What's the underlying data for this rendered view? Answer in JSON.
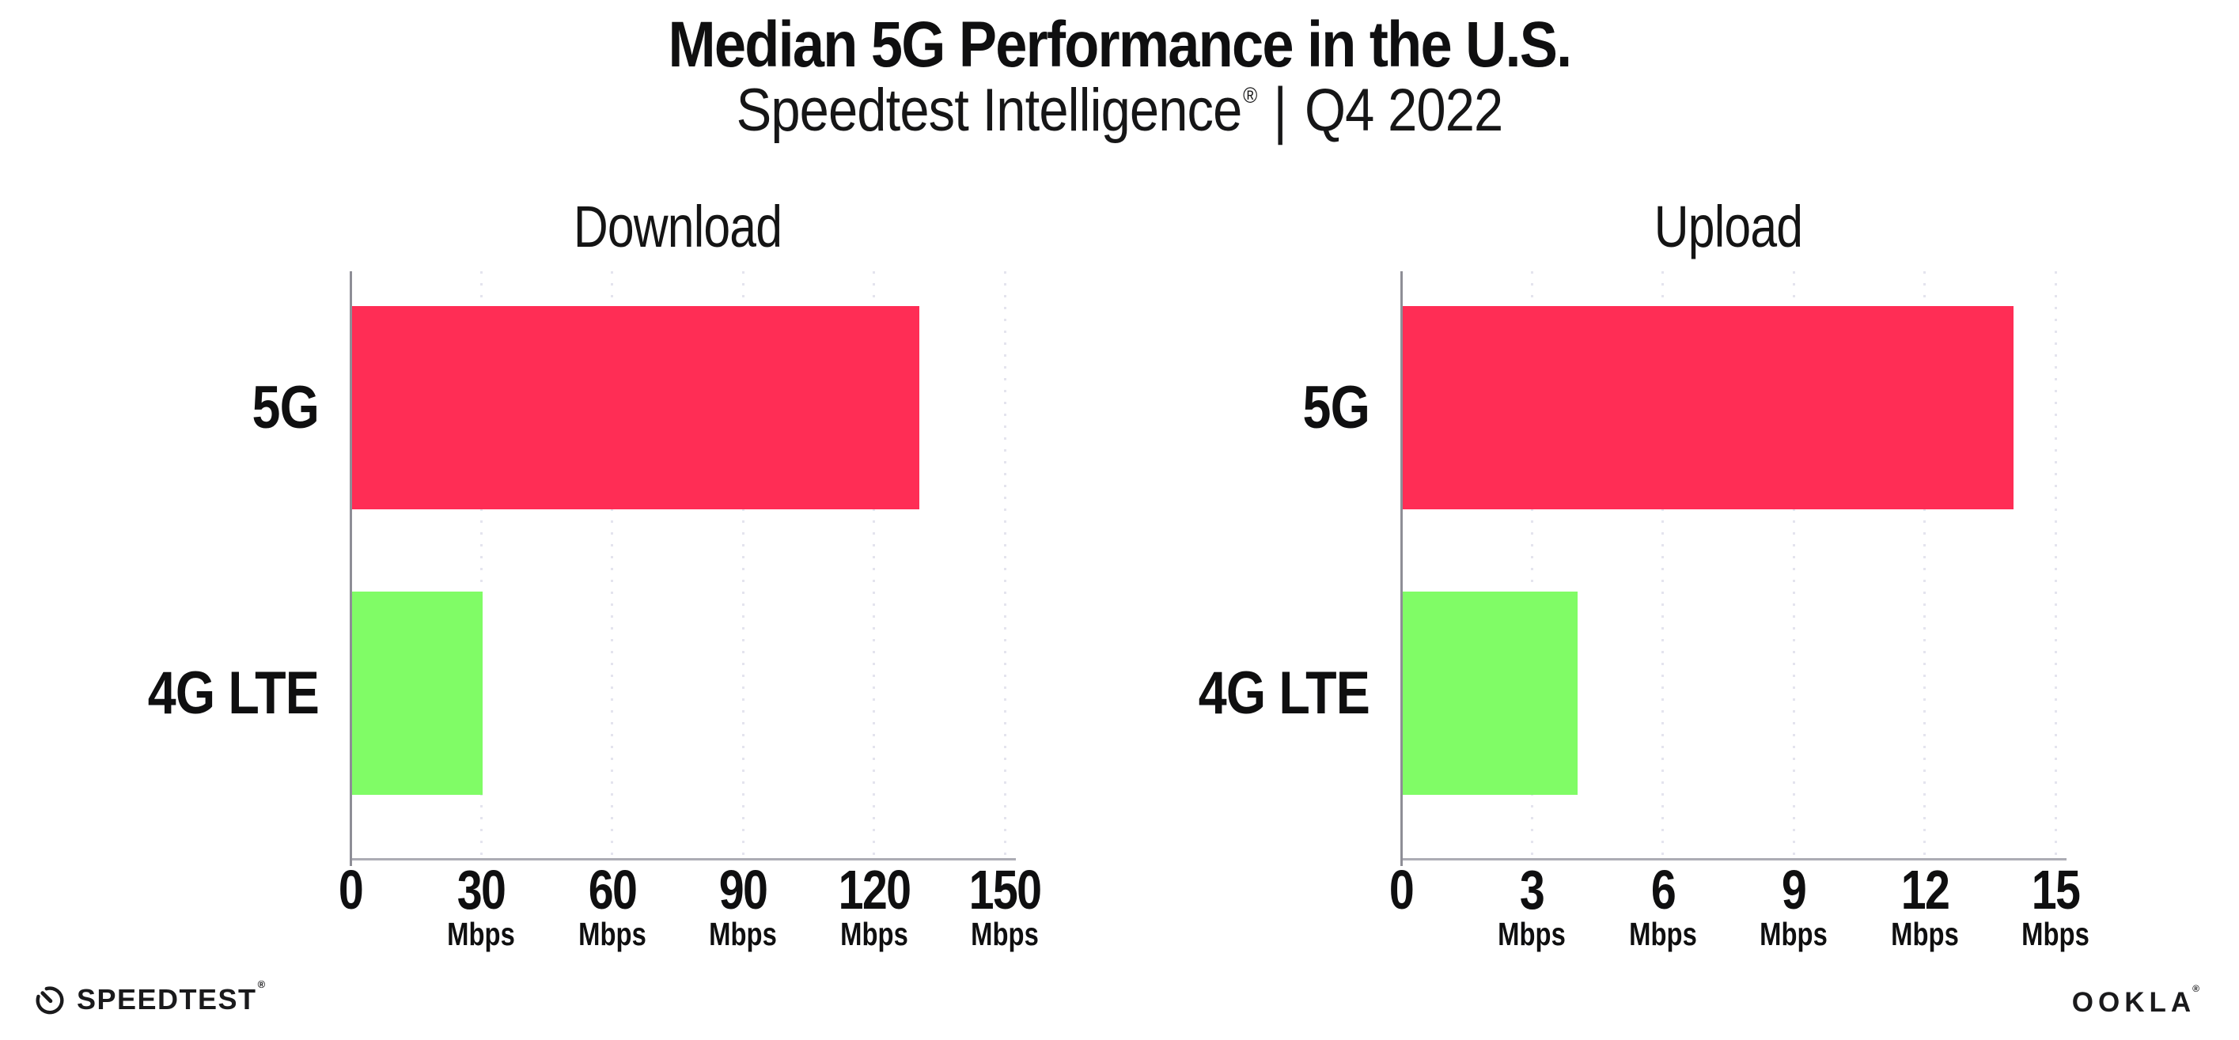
{
  "page": {
    "background": "#FFFFFF",
    "text_color": "#0F0F10"
  },
  "header": {
    "title": "Median 5G Performance in the U.S.",
    "subtitle": {
      "brand": "Speedtest Intelligence",
      "registered_mark": "®",
      "separator": "|",
      "period": "Q4 2022"
    }
  },
  "chart_data": [
    {
      "type": "bar",
      "orientation": "horizontal",
      "title": "Download",
      "categories": [
        "5G",
        "4G LTE"
      ],
      "values": [
        130,
        30
      ],
      "unit": "Mbps",
      "xlim": [
        0,
        150
      ],
      "xticks": [
        0,
        30,
        60,
        90,
        120,
        150
      ],
      "series_colors": [
        "#FF2D55",
        "#80FC66"
      ],
      "grid": "dotted-vertical",
      "legend": "none"
    },
    {
      "type": "bar",
      "orientation": "horizontal",
      "title": "Upload",
      "categories": [
        "5G",
        "4G LTE"
      ],
      "values": [
        14,
        4
      ],
      "unit": "Mbps",
      "xlim": [
        0,
        15
      ],
      "xticks": [
        0,
        3,
        6,
        9,
        12,
        15
      ],
      "series_colors": [
        "#FF2D55",
        "#80FC66"
      ],
      "grid": "dotted-vertical",
      "legend": "none"
    }
  ],
  "footer": {
    "speedtest_wordmark": "SPEEDTEST",
    "speedtest_trademark": "®",
    "ookla_wordmark": "OOKLA",
    "ookla_trademark": "®"
  },
  "colors": {
    "bar_5g": "#FF2D55",
    "bar_4g_lte": "#80FC66",
    "y_axis_line": "#8E8E96",
    "x_axis_line": "#ACACB4",
    "gridline_dots": "#E4E4EE",
    "title_text": "#0F0F10"
  }
}
